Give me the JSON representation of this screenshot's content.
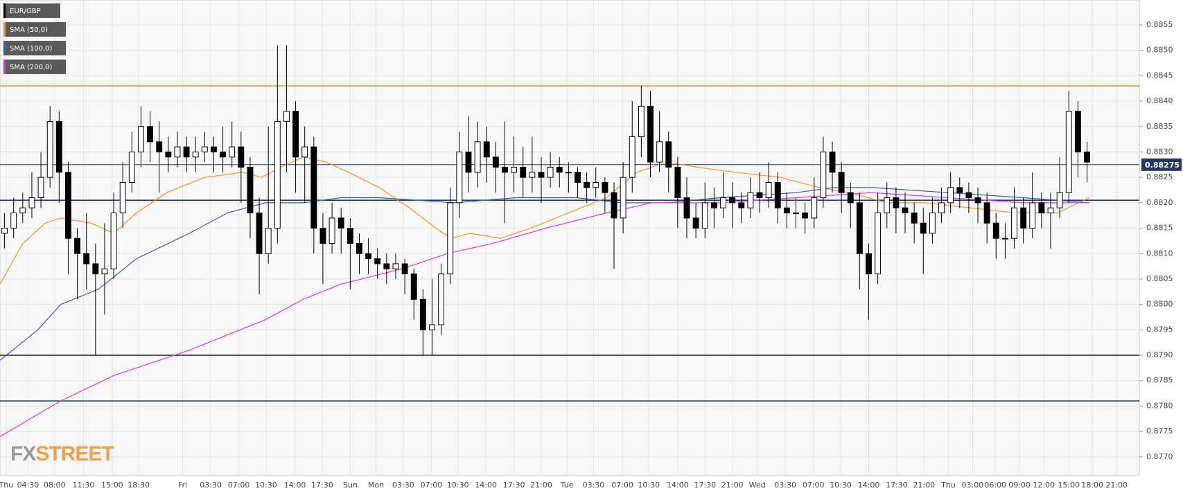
{
  "chart_data": {
    "type": "candlestick",
    "name": "EUR/GBP",
    "logo": [
      "FX",
      "STREET"
    ],
    "up_color": "#ffffff",
    "down_color": "#000000",
    "xlim": [
      0,
      125.25
    ],
    "ylim": [
      0.87663,
      0.88599
    ],
    "grid": true,
    "yticks": [
      {
        "value": 0.877,
        "label": "0.8770"
      },
      {
        "value": 0.8775,
        "label": "0.8775"
      },
      {
        "value": 0.878,
        "label": "0.8780"
      },
      {
        "value": 0.8785,
        "label": "0.8785"
      },
      {
        "value": 0.879,
        "label": "0.8790"
      },
      {
        "value": 0.8795,
        "label": "0.8795"
      },
      {
        "value": 0.88,
        "label": "0.8800"
      },
      {
        "value": 0.8805,
        "label": "0.8805"
      },
      {
        "value": 0.881,
        "label": "0.8810"
      },
      {
        "value": 0.8815,
        "label": "0.8815"
      },
      {
        "value": 0.882,
        "label": "0.8820"
      },
      {
        "value": 0.8825,
        "label": "0.8825"
      },
      {
        "value": 0.883,
        "label": "0.8830"
      },
      {
        "value": 0.8835,
        "label": "0.8835"
      },
      {
        "value": 0.884,
        "label": "0.8840"
      },
      {
        "value": 0.8845,
        "label": "0.8845"
      },
      {
        "value": 0.885,
        "label": "0.8850"
      },
      {
        "value": 0.8855,
        "label": "0.8855"
      }
    ],
    "xticks": [
      {
        "value": 0.67,
        "label": "Thu"
      },
      {
        "value": 3.08,
        "label": "04:30"
      },
      {
        "value": 6,
        "label": "08:00"
      },
      {
        "value": 9.17,
        "label": "11:30"
      },
      {
        "value": 12.33,
        "label": "15:00"
      },
      {
        "value": 15.25,
        "label": "18:30"
      },
      {
        "value": 20.08,
        "label": "Fri"
      },
      {
        "value": 23.17,
        "label": "03:30"
      },
      {
        "value": 26.25,
        "label": "07:00"
      },
      {
        "value": 29.25,
        "label": "10:30"
      },
      {
        "value": 32.42,
        "label": "14:00"
      },
      {
        "value": 35.42,
        "label": "17:30"
      },
      {
        "value": 38.5,
        "label": "Sun"
      },
      {
        "value": 41.33,
        "label": "Mon"
      },
      {
        "value": 44.33,
        "label": "03:30"
      },
      {
        "value": 47.42,
        "label": "07:00"
      },
      {
        "value": 50.33,
        "label": "10:30"
      },
      {
        "value": 53.42,
        "label": "14:00"
      },
      {
        "value": 56.5,
        "label": "17:30"
      },
      {
        "value": 59.5,
        "label": "21:00"
      },
      {
        "value": 62.33,
        "label": "Tue"
      },
      {
        "value": 65.25,
        "label": "03:30"
      },
      {
        "value": 68.42,
        "label": "07:00"
      },
      {
        "value": 71.33,
        "label": "10:30"
      },
      {
        "value": 74.5,
        "label": "14:00"
      },
      {
        "value": 77.5,
        "label": "17:30"
      },
      {
        "value": 80.5,
        "label": "21:00"
      },
      {
        "value": 83.25,
        "label": "Wed"
      },
      {
        "value": 86.33,
        "label": "03:30"
      },
      {
        "value": 89.42,
        "label": "07:00"
      },
      {
        "value": 92.42,
        "label": "10:30"
      },
      {
        "value": 95.5,
        "label": "14:00"
      },
      {
        "value": 98.58,
        "label": "17:30"
      },
      {
        "value": 101.58,
        "label": "21:00"
      },
      {
        "value": 104.25,
        "label": "Thu"
      },
      {
        "value": 106.92,
        "label": "03:00"
      },
      {
        "value": 109.42,
        "label": "06:00"
      },
      {
        "value": 112.08,
        "label": "09:00"
      },
      {
        "value": 114.75,
        "label": "12:00"
      },
      {
        "value": 117.5,
        "label": "15:00"
      },
      {
        "value": 120.08,
        "label": "18:00"
      },
      {
        "value": 122.75,
        "label": "21:00"
      }
    ],
    "open": [
      0.8814,
      0.8815,
      0.8818,
      0.8819,
      0.8821,
      0.8825,
      0.8836,
      0.8826,
      0.8813,
      0.881,
      0.8808,
      0.8806,
      0.8807,
      0.8818,
      0.8824,
      0.883,
      0.8835,
      0.8832,
      0.883,
      0.8829,
      0.8831,
      0.8829,
      0.883,
      0.8831,
      0.883,
      0.8829,
      0.8831,
      0.8827,
      0.8818,
      0.881,
      0.8815,
      0.8836,
      0.8838,
      0.8829,
      0.8831,
      0.8815,
      0.8812,
      0.8817,
      0.8815,
      0.8812,
      0.881,
      0.8809,
      0.8808,
      0.8807,
      0.8808,
      0.8806,
      0.8801,
      0.8795,
      0.8796,
      0.8806,
      0.882,
      0.883,
      0.8826,
      0.8832,
      0.8829,
      0.8827,
      0.8826,
      0.8827,
      0.8825,
      0.8826,
      0.8825,
      0.8827,
      0.8826,
      0.8826,
      0.8824,
      0.8823,
      0.8824,
      0.8822,
      0.8817,
      0.8825,
      0.8833,
      0.8839,
      0.8828,
      0.8832,
      0.8827,
      0.8821,
      0.8817,
      0.8815,
      0.882,
      0.8819,
      0.8821,
      0.882,
      0.8819,
      0.8822,
      0.8821,
      0.8824,
      0.8819,
      0.8818,
      0.8818,
      0.8817,
      0.8821,
      0.883,
      0.8826,
      0.8822,
      0.882,
      0.881,
      0.8806,
      0.8818,
      0.8821,
      0.8819,
      0.8818,
      0.8816,
      0.8814,
      0.8818,
      0.882,
      0.8823,
      0.8822,
      0.8821,
      0.882,
      0.8816,
      0.8813,
      0.8813,
      0.8819,
      0.8815,
      0.882,
      0.8818,
      0.8819,
      0.8822,
      0.8838,
      0.883
    ],
    "high": [
      0.8818,
      0.8821,
      0.8822,
      0.8826,
      0.883,
      0.8839,
      0.8838,
      0.8828,
      0.8815,
      0.8818,
      0.8812,
      0.8816,
      0.8822,
      0.8828,
      0.8834,
      0.8839,
      0.8838,
      0.8836,
      0.8833,
      0.8834,
      0.8833,
      0.8833,
      0.8834,
      0.8833,
      0.8835,
      0.8836,
      0.8834,
      0.8829,
      0.8821,
      0.8835,
      0.8851,
      0.8851,
      0.884,
      0.8835,
      0.8833,
      0.8818,
      0.882,
      0.8819,
      0.8817,
      0.8814,
      0.8813,
      0.8811,
      0.881,
      0.881,
      0.8809,
      0.8807,
      0.8803,
      0.8805,
      0.8808,
      0.8823,
      0.8834,
      0.8837,
      0.8836,
      0.8835,
      0.8832,
      0.8836,
      0.8833,
      0.8831,
      0.8833,
      0.8829,
      0.883,
      0.8829,
      0.8828,
      0.8827,
      0.8826,
      0.8827,
      0.8825,
      0.8824,
      0.8828,
      0.884,
      0.8843,
      0.8842,
      0.8838,
      0.8834,
      0.8829,
      0.8825,
      0.882,
      0.8824,
      0.8823,
      0.8826,
      0.8824,
      0.8822,
      0.8825,
      0.8826,
      0.8828,
      0.8826,
      0.8822,
      0.8821,
      0.882,
      0.8825,
      0.8833,
      0.8832,
      0.8828,
      0.8824,
      0.8822,
      0.8812,
      0.8822,
      0.8824,
      0.8823,
      0.8822,
      0.882,
      0.8819,
      0.8821,
      0.8823,
      0.8826,
      0.8825,
      0.8824,
      0.8823,
      0.8822,
      0.8818,
      0.8816,
      0.8823,
      0.8821,
      0.8826,
      0.8822,
      0.8822,
      0.8829,
      0.8842,
      0.884,
      0.8832
    ],
    "low": [
      0.8811,
      0.8813,
      0.8816,
      0.8817,
      0.8819,
      0.8823,
      0.882,
      0.8806,
      0.8801,
      0.8803,
      0.879,
      0.8798,
      0.8805,
      0.8815,
      0.8822,
      0.8827,
      0.8828,
      0.8822,
      0.8826,
      0.8827,
      0.8826,
      0.8826,
      0.8828,
      0.8826,
      0.8826,
      0.8827,
      0.882,
      0.8813,
      0.8802,
      0.8808,
      0.8812,
      0.8826,
      0.8822,
      0.882,
      0.881,
      0.8804,
      0.881,
      0.881,
      0.8803,
      0.8806,
      0.8806,
      0.8805,
      0.8804,
      0.8805,
      0.8802,
      0.8797,
      0.879,
      0.879,
      0.8794,
      0.8804,
      0.8817,
      0.8822,
      0.8823,
      0.8824,
      0.8822,
      0.8816,
      0.8822,
      0.8821,
      0.8822,
      0.882,
      0.8823,
      0.8823,
      0.8822,
      0.8821,
      0.882,
      0.8821,
      0.8818,
      0.8807,
      0.8814,
      0.8822,
      0.8829,
      0.8825,
      0.8826,
      0.8822,
      0.8815,
      0.8813,
      0.8813,
      0.8813,
      0.8815,
      0.8817,
      0.8815,
      0.8816,
      0.8817,
      0.8818,
      0.8819,
      0.8816,
      0.8815,
      0.8815,
      0.8814,
      0.8815,
      0.8819,
      0.8822,
      0.8818,
      0.8815,
      0.8803,
      0.8797,
      0.8804,
      0.8815,
      0.8814,
      0.8814,
      0.8812,
      0.8806,
      0.8812,
      0.8816,
      0.8818,
      0.8819,
      0.8818,
      0.8816,
      0.8812,
      0.8809,
      0.8809,
      0.8811,
      0.8812,
      0.8813,
      0.8815,
      0.8811,
      0.8817,
      0.882,
      0.8825,
      0.8824
    ],
    "close": [
      0.8815,
      0.8818,
      0.8819,
      0.8821,
      0.8825,
      0.8836,
      0.8826,
      0.8813,
      0.881,
      0.8808,
      0.8806,
      0.8807,
      0.8818,
      0.8824,
      0.883,
      0.8835,
      0.8832,
      0.883,
      0.8829,
      0.8831,
      0.8829,
      0.883,
      0.8831,
      0.883,
      0.8829,
      0.8831,
      0.8827,
      0.8818,
      0.881,
      0.8815,
      0.8836,
      0.8838,
      0.8829,
      0.8831,
      0.8815,
      0.8812,
      0.8817,
      0.8815,
      0.8812,
      0.881,
      0.8809,
      0.8808,
      0.8807,
      0.8808,
      0.8806,
      0.8801,
      0.8795,
      0.8796,
      0.8806,
      0.882,
      0.883,
      0.8826,
      0.8832,
      0.8829,
      0.8827,
      0.8826,
      0.8827,
      0.8825,
      0.8826,
      0.8825,
      0.8827,
      0.8826,
      0.8826,
      0.8824,
      0.8823,
      0.8824,
      0.8822,
      0.8817,
      0.8825,
      0.8833,
      0.8839,
      0.8828,
      0.8832,
      0.8827,
      0.8821,
      0.8817,
      0.8815,
      0.882,
      0.8819,
      0.8821,
      0.882,
      0.8819,
      0.8822,
      0.8821,
      0.8824,
      0.8819,
      0.8818,
      0.8818,
      0.8817,
      0.8821,
      0.883,
      0.8826,
      0.8822,
      0.882,
      0.881,
      0.8806,
      0.8818,
      0.8821,
      0.8819,
      0.8818,
      0.8816,
      0.8814,
      0.8818,
      0.882,
      0.8823,
      0.8822,
      0.8821,
      0.882,
      0.8816,
      0.8813,
      0.8813,
      0.8819,
      0.8815,
      0.882,
      0.8818,
      0.8819,
      0.8822,
      0.8838,
      0.883,
      0.8828
    ],
    "series": [
      {
        "name": "SMA (50,0)",
        "color": "#f7931e",
        "x": [
          0,
          2.5,
          5,
          6.67,
          10,
          12.5,
          15,
          18.33,
          22.5,
          26.67,
          28.75,
          30.83,
          33.33,
          35.83,
          38.33,
          41.67,
          45,
          47.92,
          49.58,
          51.67,
          55,
          58.33,
          62.5,
          66.67,
          70,
          73.33,
          76.67,
          80.83,
          85.83,
          90,
          93.33,
          97.5,
          101.67,
          106.67,
          111.67,
          116.25,
          119.75
        ],
        "values": [
          0.8804,
          0.8812,
          0.8816,
          0.8817,
          0.8816,
          0.8814,
          0.8818,
          0.8822,
          0.8825,
          0.8826,
          0.8825,
          0.8827,
          0.8829,
          0.8828,
          0.8826,
          0.8823,
          0.8819,
          0.8815,
          0.8813,
          0.8814,
          0.8813,
          0.8815,
          0.8818,
          0.8821,
          0.8826,
          0.8828,
          0.8827,
          0.8826,
          0.8825,
          0.8823,
          0.8822,
          0.882,
          0.882,
          0.8819,
          0.8818,
          0.8818,
          0.8821
        ]
      },
      {
        "name": "SMA (100,0)",
        "color": "#2f5fa7",
        "x": [
          0,
          4.17,
          6.67,
          10.83,
          15,
          20.83,
          25,
          29.17,
          33.33,
          37.5,
          41.67,
          50,
          56.67,
          63.33,
          68.33,
          73.33,
          79.17,
          87.5,
          91.67,
          95.83,
          104.17,
          112.5,
          119.75
        ],
        "values": [
          0.8789,
          0.8795,
          0.88,
          0.8803,
          0.8809,
          0.8814,
          0.8818,
          0.882,
          0.882,
          0.8821,
          0.8821,
          0.882,
          0.8821,
          0.8821,
          0.882,
          0.882,
          0.8821,
          0.8822,
          0.8823,
          0.8823,
          0.8822,
          0.8821,
          0.882
        ]
      },
      {
        "name": "SMA (200,0)",
        "color": "#e633e6",
        "x": [
          0,
          6.67,
          12.5,
          20.83,
          29.17,
          33.33,
          37.5,
          44.17,
          49.17,
          54.17,
          60,
          66.67,
          71.67,
          79.17,
          87.5,
          95.83,
          104.17,
          112.5,
          119.75
        ],
        "values": [
          0.8774,
          0.8781,
          0.8786,
          0.8791,
          0.8797,
          0.8801,
          0.8804,
          0.8807,
          0.881,
          0.8812,
          0.8815,
          0.8818,
          0.882,
          0.882,
          0.8821,
          0.8822,
          0.8821,
          0.882,
          0.882
        ]
      }
    ],
    "levels": [
      {
        "value": 0.8843,
        "color": "#f7931e"
      },
      {
        "value": 0.88205,
        "color": "#1f3864"
      },
      {
        "value": 0.879,
        "color": "#333333"
      },
      {
        "value": 0.8781,
        "color": "#1f4e79"
      }
    ],
    "last_price": 0.88275,
    "last_price_color": "#1f3864"
  }
}
